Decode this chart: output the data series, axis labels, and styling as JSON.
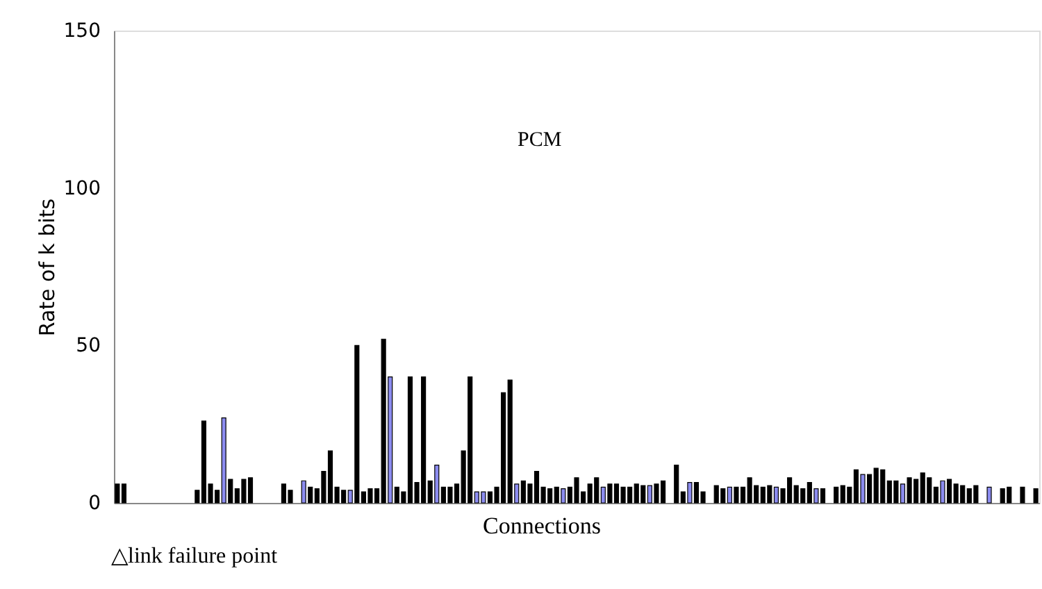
{
  "chart_data": {
    "type": "bar",
    "ylabel": "Rate of k bits",
    "xlabel": "Connections",
    "annotations": [
      "PCM",
      "△link failure point"
    ],
    "categories": [
      null,
      null,
      null,
      null,
      null,
      null,
      null,
      null,
      null,
      null,
      null,
      null,
      null,
      null,
      null,
      null,
      null,
      null,
      null,
      null,
      null,
      null,
      null,
      null,
      null,
      null,
      null,
      null,
      null,
      null,
      null,
      null,
      null,
      null,
      null,
      null,
      null,
      null,
      null,
      null,
      null,
      null,
      null,
      null,
      null,
      null,
      null,
      null,
      null,
      null,
      null,
      null,
      null,
      null,
      null,
      null,
      null,
      null,
      null,
      null,
      null,
      null,
      null,
      null,
      null,
      null,
      null,
      null,
      null,
      null,
      null,
      null,
      null,
      null,
      null,
      null,
      null,
      null,
      null,
      null,
      null,
      null,
      null,
      null,
      null,
      null,
      null,
      null,
      null,
      null,
      null,
      null,
      null,
      null,
      null,
      null,
      null,
      null,
      null,
      null,
      null,
      null,
      null,
      null,
      null,
      null,
      null,
      null,
      null,
      null,
      null,
      null,
      null,
      null,
      null,
      null,
      null,
      null,
      null,
      null,
      null,
      null,
      null,
      null,
      null,
      null,
      null,
      null,
      null,
      null,
      null,
      null,
      null,
      null,
      null,
      null,
      null,
      null,
      null
    ],
    "values": [
      6,
      6,
      null,
      null,
      null,
      null,
      null,
      null,
      null,
      null,
      null,
      null,
      4,
      26,
      6,
      4,
      27,
      7.5,
      4.5,
      7.5,
      8,
      null,
      null,
      null,
      null,
      6,
      4,
      null,
      7,
      5,
      4.5,
      10,
      16.5,
      5,
      4,
      4,
      50,
      3.5,
      4.5,
      4.5,
      52,
      40,
      5,
      3.5,
      40,
      6.5,
      40,
      7,
      12,
      5,
      5,
      6,
      16.5,
      40,
      3.5,
      3.5,
      3.5,
      5,
      35,
      39,
      6,
      7,
      6,
      10,
      5,
      4.5,
      5,
      4.5,
      5,
      8,
      3.5,
      6,
      8,
      5,
      6,
      6,
      5,
      5,
      6,
      5.5,
      5.5,
      6,
      7,
      null,
      12,
      3.5,
      6.5,
      6.5,
      3.5,
      null,
      5.5,
      4.5,
      5,
      5,
      5,
      8,
      5.5,
      5,
      5.5,
      5,
      4.5,
      8,
      5.5,
      4.5,
      6.5,
      4.5,
      4.5,
      null,
      5,
      5.5,
      5,
      10.5,
      9,
      9,
      11,
      10.5,
      7,
      7,
      6,
      8,
      7.5,
      9.5,
      8,
      5,
      7,
      7.5,
      6,
      5.5,
      4.5,
      5.5,
      null,
      5,
      null,
      4.5,
      5,
      null,
      5,
      null,
      4.5
    ],
    "colors": [
      "#000000",
      "#000000",
      "#000000",
      "#000000",
      "#000000",
      "#000000",
      "#000000",
      "#000000",
      "#000000",
      "#000000",
      "#000000",
      "#000000",
      "#000000",
      "#000000",
      "#000000",
      "#000000",
      "#8c8cf0",
      "#000000",
      "#000000",
      "#000000",
      "#000000",
      "#000000",
      "#000000",
      "#000000",
      "#000000",
      "#000000",
      "#000000",
      "#000000",
      "#8c8cf0",
      "#000000",
      "#000000",
      "#000000",
      "#000000",
      "#000000",
      "#000000",
      "#8c8cf0",
      "#000000",
      "#000000",
      "#000000",
      "#000000",
      "#000000",
      "#8c8cf0",
      "#000000",
      "#000000",
      "#000000",
      "#000000",
      "#000000",
      "#000000",
      "#8c8cf0",
      "#000000",
      "#000000",
      "#000000",
      "#000000",
      "#000000",
      "#8c8cf0",
      "#8c8cf0",
      "#000000",
      "#000000",
      "#000000",
      "#000000",
      "#8c8cf0",
      "#000000",
      "#000000",
      "#000000",
      "#000000",
      "#000000",
      "#000000",
      "#8c8cf0",
      "#000000",
      "#000000",
      "#000000",
      "#000000",
      "#000000",
      "#8c8cf0",
      "#000000",
      "#000000",
      "#000000",
      "#000000",
      "#000000",
      "#000000",
      "#8c8cf0",
      "#000000",
      "#000000",
      "#000000",
      "#000000",
      "#000000",
      "#8c8cf0",
      "#000000",
      "#000000",
      "#000000",
      "#000000",
      "#000000",
      "#8c8cf0",
      "#000000",
      "#000000",
      "#000000",
      "#000000",
      "#000000",
      "#000000",
      "#8c8cf0",
      "#000000",
      "#000000",
      "#000000",
      "#000000",
      "#000000",
      "#8c8cf0",
      "#000000",
      "#000000",
      "#000000",
      "#000000",
      "#000000",
      "#000000",
      "#8c8cf0",
      "#000000",
      "#000000",
      "#000000",
      "#000000",
      "#000000",
      "#8c8cf0",
      "#000000",
      "#000000",
      "#000000",
      "#000000",
      "#000000",
      "#8c8cf0",
      "#000000",
      "#000000",
      "#000000",
      "#000000",
      "#000000",
      "#000000",
      "#8c8cf0",
      "#000000",
      "#000000",
      "#000000",
      "#000000",
      "#000000",
      "#000000",
      "#000000"
    ],
    "ylim": [
      0,
      150
    ],
    "yticks": [
      0,
      50,
      100,
      150
    ],
    "grid": false,
    "tick_labels": "y"
  }
}
